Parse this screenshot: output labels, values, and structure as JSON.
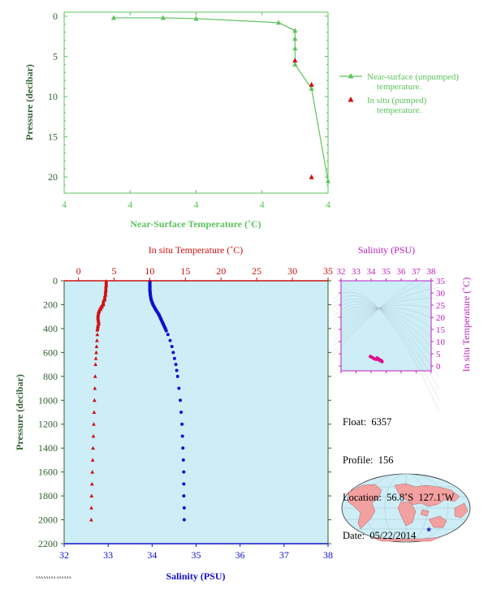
{
  "colors": {
    "green": "#5cc35c",
    "axis_green": "#2f5f2f",
    "red": "#d01010",
    "blue": "#1010d0",
    "magenta": "#c020c0",
    "water": "#cdeef7",
    "land": "#f2a0a0"
  },
  "chart_data": [
    {
      "type": "line",
      "name": "near-surface",
      "title": "",
      "xlabel": "Near-Surface Temperature (˚C)",
      "ylabel": "Pressure (decibar)",
      "x_tick_labels": [
        "4",
        "4",
        "4",
        "4",
        "4"
      ],
      "xlim": [
        3.9,
        4.7
      ],
      "ylim": [
        22,
        -0.5
      ],
      "y_ticks": [
        0,
        5,
        10,
        15,
        20
      ],
      "legend_position": "right",
      "series": [
        {
          "name": "Near-surface (unpumped) temperature.",
          "marker": "triangle",
          "color": "#5cc35c",
          "connected": true,
          "x": [
            4.05,
            4.2,
            4.3,
            4.55,
            4.6,
            4.6,
            4.6,
            4.6,
            4.65,
            4.7
          ],
          "y": [
            0.2,
            0.2,
            0.3,
            0.8,
            1.8,
            2.8,
            4.0,
            6.0,
            9.0,
            20.5
          ]
        },
        {
          "name": "In situ (pumped) temperature.",
          "marker": "triangle",
          "color": "#d01010",
          "connected": false,
          "x": [
            4.6,
            4.65,
            4.65
          ],
          "y": [
            5.5,
            8.5,
            20.0
          ]
        }
      ]
    },
    {
      "type": "scatter",
      "name": "profile",
      "ylabel": "Pressure (decibar)",
      "top_axis_label": "In situ Temperature (˚C)",
      "bottom_axis_label": "Salinity (PSU)",
      "temp_range": [
        -2,
        35
      ],
      "temp_ticks": [
        0,
        5,
        10,
        15,
        20,
        25,
        30,
        35
      ],
      "sal_range": [
        32,
        38
      ],
      "sal_ticks": [
        32,
        33,
        34,
        35,
        36,
        37,
        38
      ],
      "pressure_range": [
        0,
        2200
      ],
      "pressure_ticks": [
        0,
        200,
        400,
        600,
        800,
        1000,
        1200,
        1400,
        1600,
        1800,
        2000,
        2200
      ],
      "temperature": {
        "pressure": [
          5,
          40,
          80,
          120,
          160,
          200,
          220,
          240,
          260,
          280,
          300,
          320,
          340,
          360,
          380,
          400,
          450,
          500,
          550,
          600,
          650,
          700,
          800,
          900,
          1000,
          1100,
          1200,
          1300,
          1400,
          1500,
          1600,
          1700,
          1800,
          1900,
          2000
        ],
        "value": [
          3.9,
          3.9,
          3.85,
          3.8,
          3.7,
          3.5,
          3.3,
          3.1,
          2.9,
          2.8,
          2.75,
          2.75,
          2.8,
          2.85,
          2.75,
          2.7,
          2.65,
          2.6,
          2.55,
          2.5,
          2.45,
          2.4,
          2.35,
          2.3,
          2.25,
          2.2,
          2.15,
          2.1,
          2.05,
          2.0,
          1.95,
          1.9,
          1.85,
          1.82,
          1.8
        ]
      },
      "salinity": {
        "pressure": [
          5,
          40,
          80,
          120,
          160,
          200,
          240,
          280,
          320,
          360,
          400,
          450,
          500,
          550,
          600,
          650,
          700,
          750,
          800,
          900,
          1000,
          1100,
          1200,
          1300,
          1400,
          1500,
          1600,
          1700,
          1800,
          1900,
          2000
        ],
        "value": [
          33.95,
          33.95,
          33.95,
          33.96,
          33.98,
          34.02,
          34.08,
          34.15,
          34.2,
          34.25,
          34.3,
          34.36,
          34.41,
          34.45,
          34.48,
          34.51,
          34.54,
          34.56,
          34.58,
          34.61,
          34.64,
          34.66,
          34.68,
          34.69,
          34.7,
          34.71,
          34.72,
          34.72,
          34.72,
          34.73,
          34.73
        ]
      }
    },
    {
      "type": "scatter",
      "name": "ts-diagram",
      "title": "Salinity (PSU)",
      "ylabel": "In situ Temperature (˚C)",
      "x_ticks": [
        32,
        33,
        34,
        35,
        36,
        37,
        38
      ],
      "xlim": [
        32,
        38
      ],
      "y_ticks": [
        0,
        5,
        10,
        15,
        20,
        25,
        30,
        35
      ],
      "ylim": [
        -2,
        35
      ],
      "points": {
        "sal": [
          33.95,
          34.0,
          34.1,
          34.2,
          34.3,
          34.4,
          34.5,
          34.6,
          34.65,
          34.7,
          34.72,
          34.73,
          34.6,
          34.5,
          34.4
        ],
        "temp": [
          3.9,
          3.8,
          3.4,
          3.0,
          2.8,
          2.75,
          2.6,
          2.45,
          2.3,
          2.1,
          1.9,
          1.8,
          2.2,
          2.9,
          3.3
        ]
      }
    }
  ],
  "info": {
    "float": "Float:  6357",
    "profile": "Profile:  156",
    "location": "Location:  56.8˚S  127.1˚W",
    "date": "Date:  05/22/2014"
  },
  "map": {
    "marker": "★",
    "float_lat": -56.8,
    "float_lon": -127.1
  },
  "footer": "AAAAAAAA AAAAAA"
}
